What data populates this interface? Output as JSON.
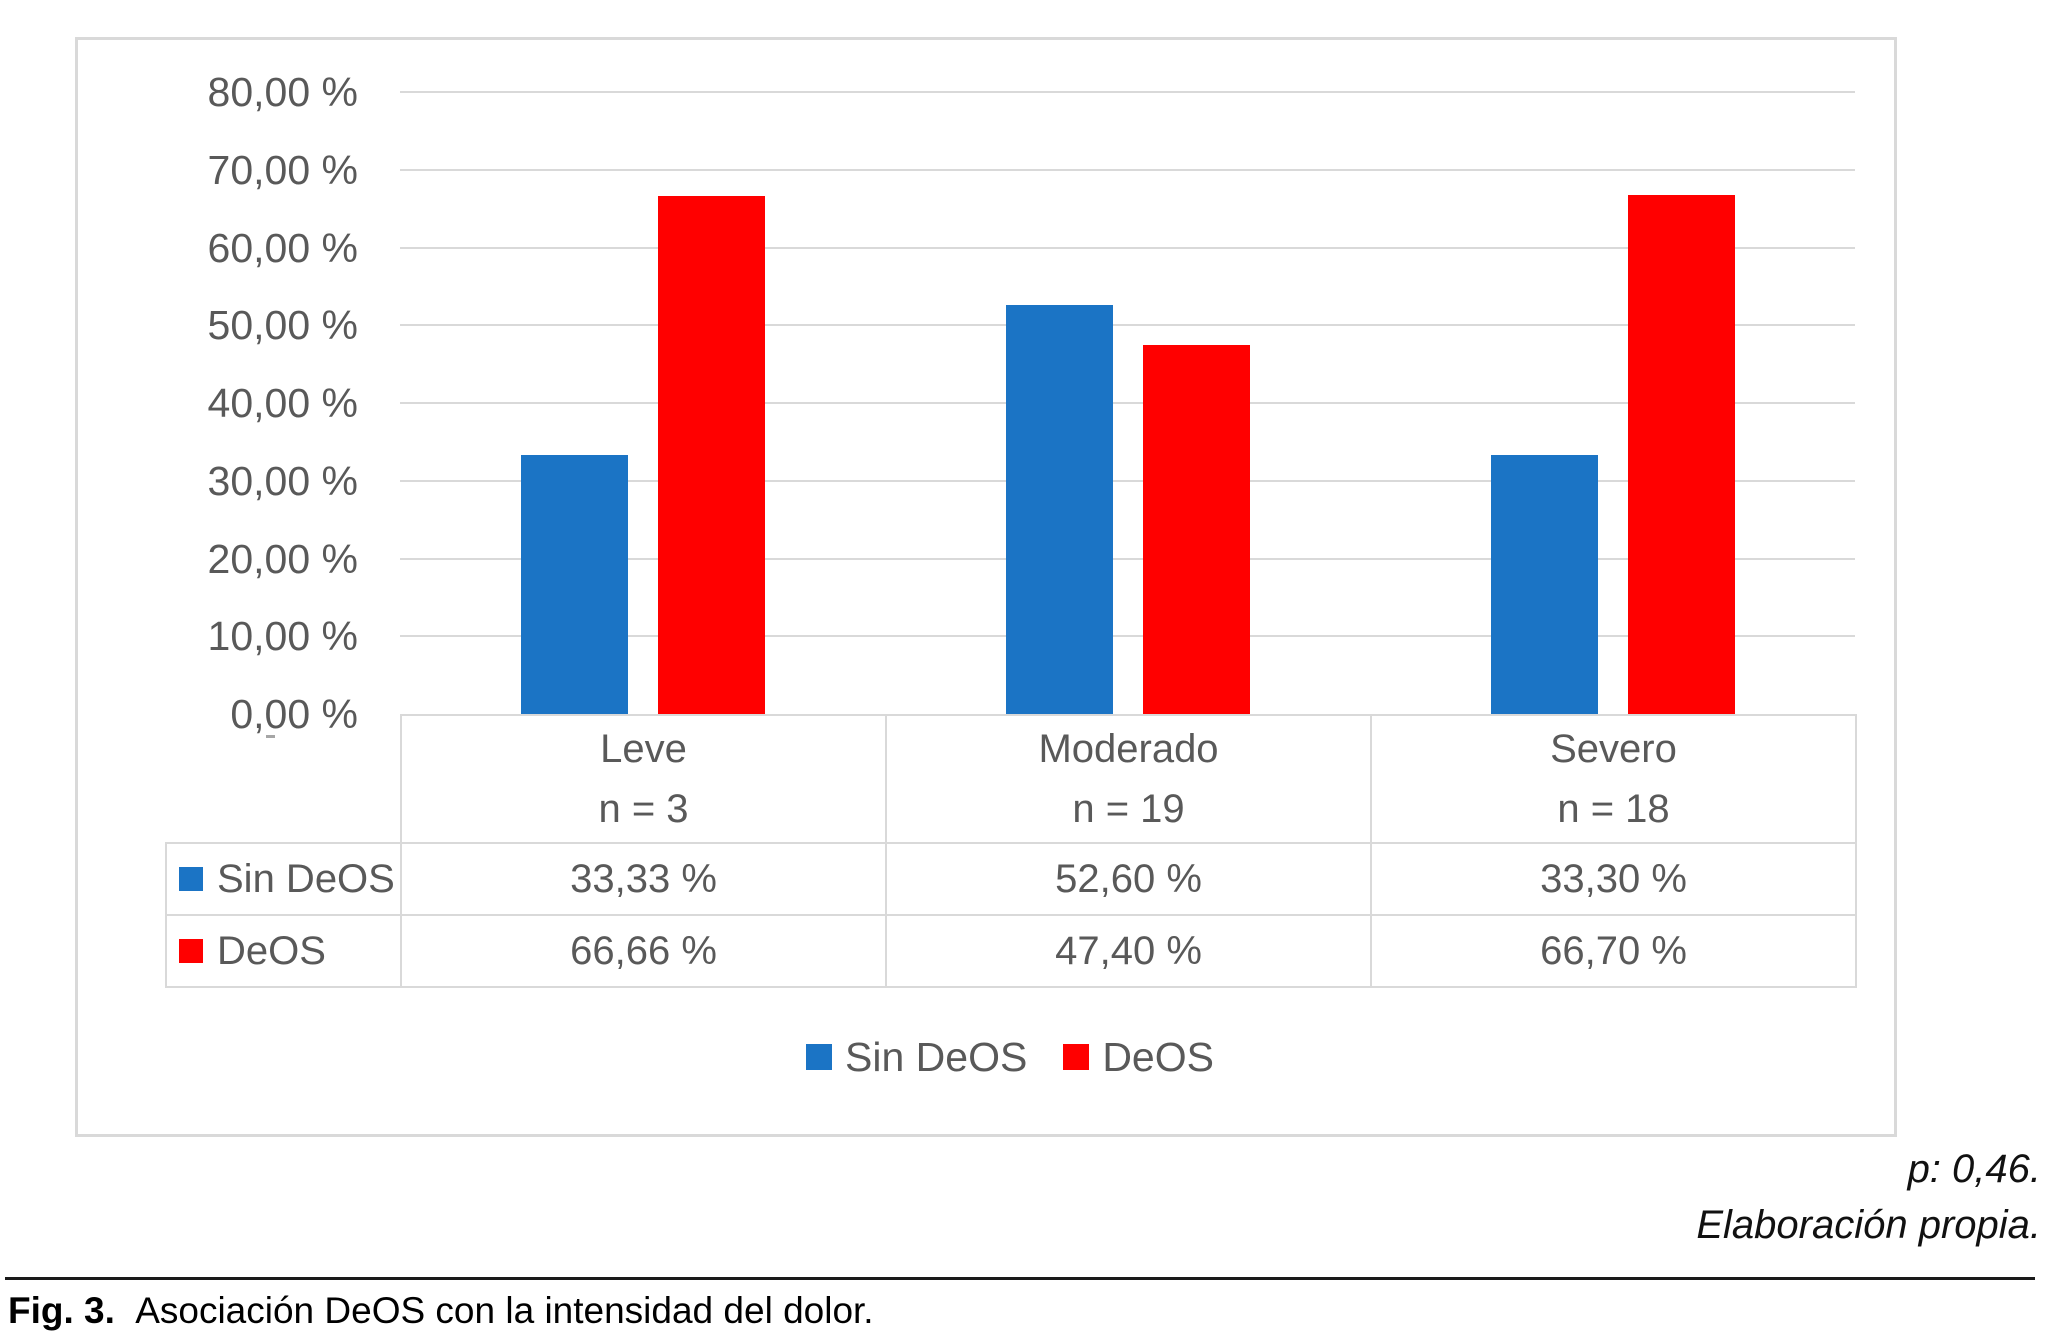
{
  "figure": {
    "caption_label": "Fig. 3.",
    "caption_text": "Asociación DeOS con la intensidad del dolor.",
    "annotations": {
      "p_value": "p: 0,46.",
      "source": "Elaboración propia."
    }
  },
  "chart_data": {
    "type": "bar",
    "title": "",
    "categories": [
      "Leve",
      "Moderado",
      "Severo"
    ],
    "category_sublabels": [
      "n = 3",
      "n = 19",
      "n = 18"
    ],
    "series": [
      {
        "name": "Sin DeOS",
        "color": "#1B74C5",
        "values": [
          33.33,
          52.6,
          33.3
        ],
        "display_values": [
          "33,33 %",
          "52,60 %",
          "33,30 %"
        ]
      },
      {
        "name": "DeOS",
        "color": "#FF0000",
        "values": [
          66.66,
          47.4,
          66.7
        ],
        "display_values": [
          "66,66 %",
          "47,40 %",
          "66,70 %"
        ]
      }
    ],
    "ylim": [
      0,
      80
    ],
    "ytick_step": 10,
    "ytick_labels": [
      "0,00 %",
      "10,00 %",
      "20,00 %",
      "30,00 %",
      "40,00 %",
      "50,00 %",
      "60,00 %",
      "70,00 %",
      "80,00 %"
    ],
    "grid": true,
    "legend_position": "bottom",
    "data_table_shown": true,
    "colors": {
      "gridline": "#D9D9D9",
      "frame_border": "#D9D9D9",
      "axis_text": "#595959",
      "table_border": "#D9D9D9"
    }
  }
}
